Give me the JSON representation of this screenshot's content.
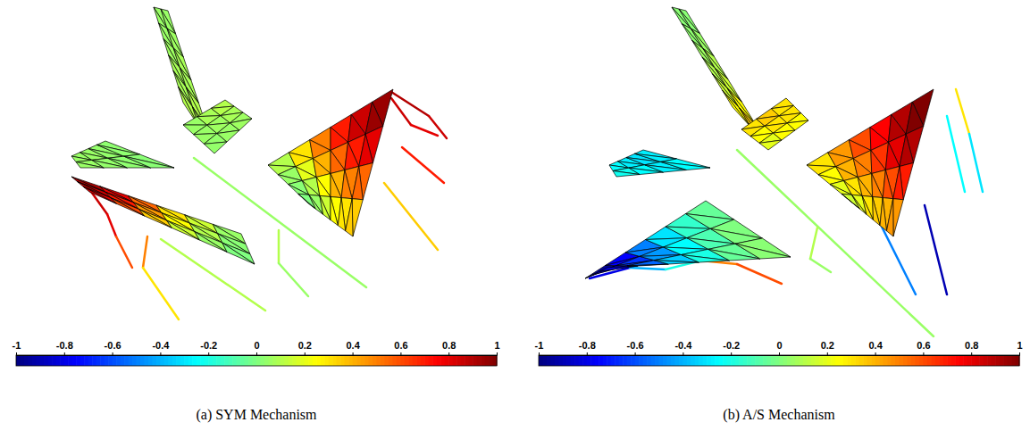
{
  "chart_data": [
    {
      "type": "mesh",
      "caption": "(a) SYM Mechanism",
      "color_range": [
        -1,
        1
      ],
      "color_ticks": [
        -1,
        -0.8,
        -0.6,
        -0.4,
        -0.2,
        0,
        0.2,
        0.4,
        0.6,
        0.8,
        1
      ],
      "surfaces": [
        {
          "values": [
            [
              0.05,
              0.05
            ],
            [
              0.05,
              0.06
            ],
            [
              0.06,
              0.08
            ],
            [
              0.08,
              0.08
            ],
            [
              0.08,
              0.1
            ],
            [
              0.1,
              0.1
            ]
          ]
        },
        {
          "values": [
            [
              0.05,
              0.08,
              0.1
            ],
            [
              0.05,
              0.06,
              0.08
            ],
            [
              0.04,
              0.05,
              0.06
            ]
          ]
        },
        {
          "values": [
            [
              0.05,
              0.05,
              0.04,
              0.03
            ],
            [
              0.05,
              0.04,
              0.03,
              0.02
            ]
          ]
        },
        {
          "values": [
            [
              0.9,
              0.8,
              0.55,
              0.3,
              0.15,
              0.05
            ],
            [
              0.85,
              0.7,
              0.45,
              0.25,
              0.1,
              0.02
            ],
            [
              0.8,
              0.6,
              0.35,
              0.15,
              0.05,
              0
            ]
          ]
        },
        {
          "values": [
            [
              0.1,
              0.3,
              0.5,
              0.7,
              0.85,
              0.95
            ],
            [
              0.05,
              0.2,
              0.4,
              0.55,
              0.7,
              0.8
            ],
            [
              0.02,
              0.1,
              0.25,
              0.4,
              0.5,
              0.55
            ],
            [
              0,
              0.05,
              0.15,
              0.25,
              0.3,
              0.35
            ]
          ]
        }
      ],
      "beams": [
        {
          "values": [
            0.05
          ]
        },
        {
          "values": [
            0.1,
            0.05
          ]
        },
        {
          "values": [
            0.85,
            0.8,
            0.6
          ]
        },
        {
          "values": [
            0.5,
            0.3,
            0.2
          ]
        },
        {
          "values": [
            0.1
          ]
        },
        {
          "values": [
            0.9,
            0.85
          ]
        },
        {
          "values": [
            0.85,
            0.8
          ]
        },
        {
          "values": [
            0.7
          ]
        },
        {
          "values": [
            0.35
          ]
        }
      ]
    },
    {
      "type": "mesh",
      "caption": "(b) A/S Mechanism",
      "color_range": [
        -1,
        1
      ],
      "color_ticks": [
        -1,
        -0.8,
        -0.6,
        -0.4,
        -0.2,
        0,
        0.2,
        0.4,
        0.6,
        0.8,
        1
      ],
      "surfaces": [
        {
          "values": [
            [
              0.02,
              0.02
            ],
            [
              0.03,
              0.05
            ],
            [
              0.06,
              0.1
            ],
            [
              0.1,
              0.15
            ],
            [
              0.15,
              0.25
            ],
            [
              0.25,
              0.35
            ]
          ]
        },
        {
          "values": [
            [
              0.3,
              0.35,
              0.3
            ],
            [
              0.25,
              0.3,
              0.3
            ],
            [
              0.2,
              0.25,
              0.25
            ]
          ]
        },
        {
          "values": [
            [
              -0.25,
              -0.28,
              -0.3,
              -0.28
            ],
            [
              -0.22,
              -0.25,
              -0.28,
              -0.25
            ]
          ]
        },
        {
          "values": [
            [
              -0.95,
              -0.75,
              -0.5,
              -0.3,
              -0.15,
              -0.05
            ],
            [
              -0.85,
              -0.65,
              -0.45,
              -0.25,
              -0.1,
              0
            ],
            [
              -0.75,
              -0.55,
              -0.35,
              -0.2,
              -0.05,
              0.02
            ]
          ]
        },
        {
          "values": [
            [
              0.3,
              0.45,
              0.6,
              0.75,
              0.9,
              1
            ],
            [
              0.25,
              0.4,
              0.5,
              0.65,
              0.8,
              0.9
            ],
            [
              0.2,
              0.3,
              0.4,
              0.5,
              0.6,
              0.7
            ],
            [
              0.15,
              0.2,
              0.3,
              0.35,
              0.4,
              0.45
            ]
          ]
        }
      ],
      "beams": [
        {
          "values": [
            0.05
          ]
        },
        {
          "values": [
            0.1,
            0.05
          ]
        },
        {
          "values": [
            -0.8,
            -0.4,
            -0.2,
            0.5,
            0.6
          ]
        },
        {
          "values": [
            0.3,
            -0.3
          ]
        },
        {
          "values": [
            -0.25
          ]
        },
        {
          "values": [
            -0.5
          ]
        },
        {
          "values": [
            -0.9
          ]
        }
      ]
    }
  ]
}
